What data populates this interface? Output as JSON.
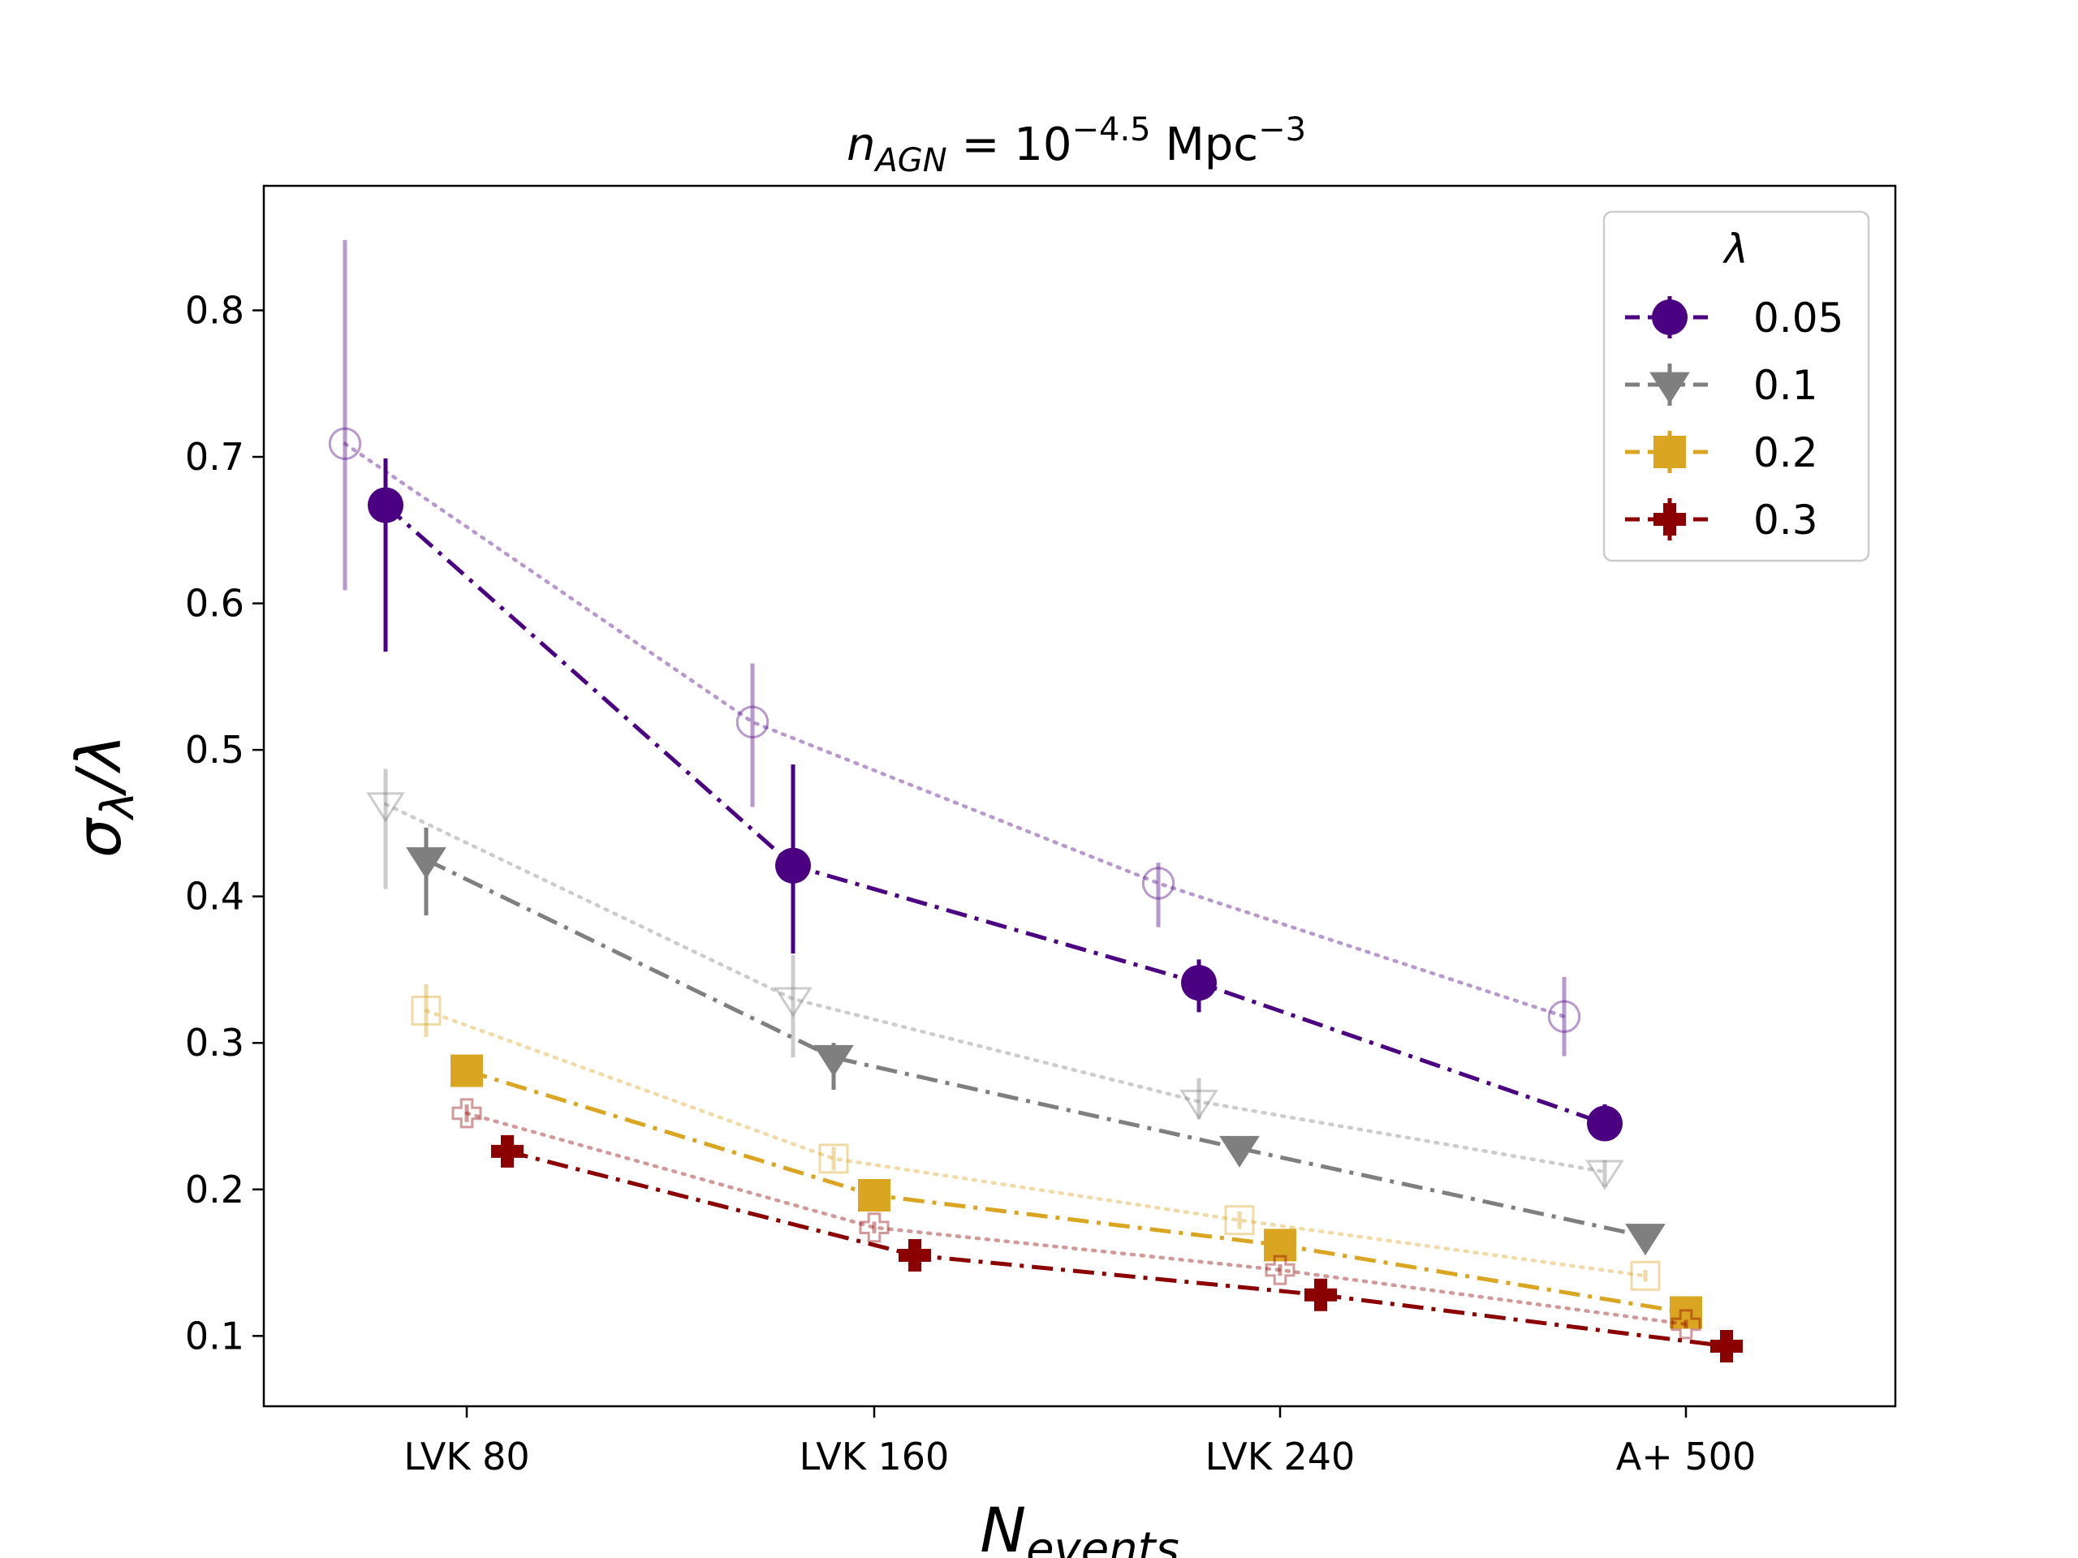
{
  "chart_data": {
    "type": "line",
    "title": {
      "prefix": "n",
      "subscript": "AGN",
      "equals": " = 10",
      "exponent": "−4.5",
      "unit": " Mpc",
      "unit_exponent": "−3"
    },
    "xlabel": {
      "main": "N",
      "subscript": "events"
    },
    "ylabel": {
      "main": "σ",
      "subscript": "λ",
      "suffix": "/λ"
    },
    "categories": [
      "LVK 80",
      "LVK 160",
      "LVK 240",
      "A+ 500"
    ],
    "ylim": [
      0.052,
      0.885
    ],
    "yticks": [
      0.1,
      0.2,
      0.3,
      0.4,
      0.5,
      0.6,
      0.7,
      0.8
    ],
    "ytick_labels": [
      "0.1",
      "0.2",
      "0.3",
      "0.4",
      "0.5",
      "0.6",
      "0.7",
      "0.8"
    ],
    "legend": {
      "title": "λ",
      "position": "top-right"
    },
    "series": [
      {
        "name": "0.05",
        "color": "#4b0082",
        "marker": "circle",
        "values": [
          0.667,
          0.421,
          0.341,
          0.245
        ],
        "err_low": [
          0.1,
          0.06,
          0.02,
          0.012
        ],
        "err_high": [
          0.032,
          0.069,
          0.016,
          0.013
        ],
        "alt_values": [
          0.709,
          0.519,
          0.409,
          0.318
        ],
        "alt_err_low": [
          0.1,
          0.058,
          0.03,
          0.027
        ],
        "alt_err_high": [
          0.139,
          0.04,
          0.014,
          0.027
        ]
      },
      {
        "name": "0.1",
        "color": "#7f7f7f",
        "marker": "triangle-down",
        "values": [
          0.425,
          0.29,
          0.228,
          0.168
        ],
        "err_low": [
          0.038,
          0.022,
          0.008,
          0.006
        ],
        "err_high": [
          0.022,
          0.01,
          0.006,
          0.006
        ],
        "alt_values": [
          0.463,
          0.33,
          0.26,
          0.212
        ],
        "alt_err_low": [
          0.058,
          0.04,
          0.012,
          0.01
        ],
        "alt_err_high": [
          0.024,
          0.03,
          0.016,
          0.008
        ]
      },
      {
        "name": "0.2",
        "color": "#daa520",
        "marker": "square",
        "values": [
          0.281,
          0.196,
          0.162,
          0.116
        ],
        "err_low": [
          0.006,
          0.004,
          0.004,
          0.003
        ],
        "err_high": [
          0.006,
          0.004,
          0.004,
          0.003
        ],
        "alt_values": [
          0.322,
          0.221,
          0.179,
          0.141
        ],
        "alt_err_low": [
          0.018,
          0.008,
          0.006,
          0.004
        ],
        "alt_err_high": [
          0.018,
          0.008,
          0.006,
          0.004
        ]
      },
      {
        "name": "0.3",
        "color": "#8b0000",
        "marker": "plus",
        "values": [
          0.226,
          0.155,
          0.128,
          0.093
        ],
        "err_low": [
          0.004,
          0.003,
          0.003,
          0.002
        ],
        "err_high": [
          0.004,
          0.003,
          0.003,
          0.002
        ],
        "alt_values": [
          0.252,
          0.174,
          0.145,
          0.108
        ],
        "alt_err_low": [
          0.006,
          0.004,
          0.004,
          0.003
        ],
        "alt_err_high": [
          0.006,
          0.004,
          0.004,
          0.003
        ]
      }
    ]
  }
}
